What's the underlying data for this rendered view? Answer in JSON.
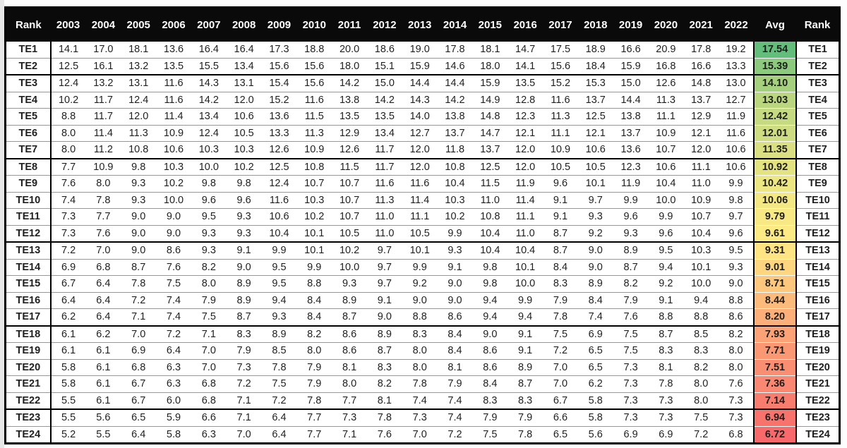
{
  "colors": {
    "header_bg": "#0A0A0A",
    "header_text": "#FFFFFF",
    "grid_line": "#979797",
    "tier_line": "#000000",
    "outer_border": "#000000",
    "scale_max_green": "#63BE7B",
    "scale_mid_yellow": "#FFEB84",
    "scale_min_red": "#F8696B"
  },
  "chart_data": {
    "type": "table",
    "columns": [
      "Rank",
      "2003",
      "2004",
      "2005",
      "2006",
      "2007",
      "2008",
      "2009",
      "2010",
      "2011",
      "2012",
      "2013",
      "2014",
      "2015",
      "2016",
      "2017",
      "2018",
      "2019",
      "2020",
      "2021",
      "2022",
      "Avg",
      "Rank"
    ],
    "rows": [
      {
        "rank": "TE1",
        "tier_break_above": false,
        "values": [
          "14.1",
          "17.0",
          "18.1",
          "13.6",
          "16.4",
          "16.4",
          "17.3",
          "18.8",
          "20.0",
          "18.6",
          "19.0",
          "17.8",
          "18.1",
          "14.7",
          "17.5",
          "18.9",
          "16.6",
          "20.9",
          "17.8",
          "19.2"
        ],
        "avg": "17.54",
        "avg_color": "#63BE7B"
      },
      {
        "rank": "TE2",
        "tier_break_above": false,
        "values": [
          "12.5",
          "16.1",
          "13.2",
          "13.5",
          "15.5",
          "13.4",
          "15.6",
          "15.6",
          "18.0",
          "15.1",
          "15.9",
          "14.6",
          "18.0",
          "14.1",
          "15.6",
          "18.4",
          "15.9",
          "16.8",
          "16.6",
          "13.3"
        ],
        "avg": "15.39",
        "avg_color": "#8CCA7D"
      },
      {
        "rank": "TE3",
        "tier_break_above": true,
        "values": [
          "12.4",
          "13.2",
          "13.1",
          "11.6",
          "14.3",
          "13.1",
          "15.4",
          "15.6",
          "14.2",
          "15.0",
          "14.4",
          "14.4",
          "15.9",
          "13.5",
          "15.2",
          "15.3",
          "15.0",
          "12.6",
          "14.8",
          "13.0"
        ],
        "avg": "14.10",
        "avg_color": "#A5D17F"
      },
      {
        "rank": "TE4",
        "tier_break_above": false,
        "values": [
          "10.2",
          "11.7",
          "12.4",
          "11.6",
          "14.2",
          "12.0",
          "15.2",
          "11.6",
          "13.8",
          "14.2",
          "14.3",
          "14.2",
          "14.9",
          "12.8",
          "11.6",
          "13.7",
          "14.4",
          "11.3",
          "13.7",
          "12.7"
        ],
        "avg": "13.03",
        "avg_color": "#BAD780"
      },
      {
        "rank": "TE5",
        "tier_break_above": false,
        "values": [
          "8.8",
          "11.7",
          "12.0",
          "11.4",
          "13.4",
          "10.6",
          "13.6",
          "11.5",
          "13.5",
          "13.5",
          "14.0",
          "13.8",
          "14.8",
          "12.3",
          "11.3",
          "12.5",
          "13.8",
          "11.1",
          "12.9",
          "11.9"
        ],
        "avg": "12.42",
        "avg_color": "#C6DB81"
      },
      {
        "rank": "TE6",
        "tier_break_above": false,
        "values": [
          "8.0",
          "11.4",
          "11.3",
          "10.9",
          "12.4",
          "10.5",
          "13.3",
          "11.3",
          "12.9",
          "13.4",
          "12.7",
          "13.7",
          "14.7",
          "12.1",
          "11.1",
          "12.1",
          "13.7",
          "10.9",
          "12.1",
          "11.6"
        ],
        "avg": "12.01",
        "avg_color": "#CEDD81"
      },
      {
        "rank": "TE7",
        "tier_break_above": false,
        "values": [
          "8.0",
          "11.2",
          "10.8",
          "10.6",
          "10.3",
          "10.3",
          "12.6",
          "10.9",
          "12.6",
          "11.7",
          "12.0",
          "11.8",
          "13.7",
          "12.0",
          "10.9",
          "10.6",
          "13.6",
          "10.7",
          "12.0",
          "10.6"
        ],
        "avg": "11.35",
        "avg_color": "#DAE082"
      },
      {
        "rank": "TE8",
        "tier_break_above": true,
        "values": [
          "7.7",
          "10.9",
          "9.8",
          "10.3",
          "10.0",
          "10.2",
          "12.5",
          "10.8",
          "11.5",
          "11.7",
          "12.0",
          "10.8",
          "12.5",
          "12.0",
          "10.5",
          "10.5",
          "12.3",
          "10.6",
          "11.1",
          "10.6"
        ],
        "avg": "10.92",
        "avg_color": "#E3E382"
      },
      {
        "rank": "TE9",
        "tier_break_above": false,
        "values": [
          "7.6",
          "8.0",
          "9.3",
          "10.2",
          "9.8",
          "9.8",
          "12.4",
          "10.7",
          "10.7",
          "11.6",
          "11.6",
          "10.4",
          "11.5",
          "11.9",
          "9.6",
          "10.1",
          "11.9",
          "10.4",
          "11.0",
          "9.9"
        ],
        "avg": "10.42",
        "avg_color": "#ECE683"
      },
      {
        "rank": "TE10",
        "tier_break_above": false,
        "values": [
          "7.4",
          "7.8",
          "9.3",
          "10.0",
          "9.6",
          "9.6",
          "11.6",
          "10.3",
          "10.7",
          "11.3",
          "11.4",
          "10.3",
          "11.0",
          "11.4",
          "9.1",
          "9.7",
          "9.9",
          "10.0",
          "10.9",
          "9.8"
        ],
        "avg": "10.06",
        "avg_color": "#F3E883"
      },
      {
        "rank": "TE11",
        "tier_break_above": false,
        "values": [
          "7.3",
          "7.7",
          "9.0",
          "9.0",
          "9.5",
          "9.3",
          "10.6",
          "10.2",
          "10.7",
          "11.0",
          "11.1",
          "10.2",
          "10.8",
          "11.1",
          "9.1",
          "9.3",
          "9.6",
          "9.9",
          "10.7",
          "9.7"
        ],
        "avg": "9.79",
        "avg_color": "#F9E984"
      },
      {
        "rank": "TE12",
        "tier_break_above": false,
        "values": [
          "7.3",
          "7.6",
          "9.0",
          "9.0",
          "9.3",
          "9.3",
          "10.4",
          "10.1",
          "10.5",
          "11.0",
          "10.5",
          "9.9",
          "10.4",
          "11.0",
          "8.7",
          "9.2",
          "9.3",
          "9.6",
          "10.4",
          "9.6"
        ],
        "avg": "9.61",
        "avg_color": "#FCEA84"
      },
      {
        "rank": "TE13",
        "tier_break_above": true,
        "values": [
          "7.2",
          "7.0",
          "9.0",
          "8.6",
          "9.3",
          "9.1",
          "9.9",
          "10.1",
          "10.2",
          "9.7",
          "10.1",
          "9.3",
          "10.4",
          "10.4",
          "8.7",
          "9.0",
          "8.9",
          "9.5",
          "10.3",
          "9.5"
        ],
        "avg": "9.31",
        "avg_color": "#FFE483"
      },
      {
        "rank": "TE14",
        "tier_break_above": false,
        "values": [
          "6.9",
          "6.8",
          "8.7",
          "7.6",
          "8.2",
          "9.0",
          "9.5",
          "9.9",
          "10.0",
          "9.7",
          "9.9",
          "9.1",
          "9.8",
          "10.1",
          "8.4",
          "9.0",
          "8.7",
          "9.4",
          "10.1",
          "9.3"
        ],
        "avg": "9.01",
        "avg_color": "#FED680"
      },
      {
        "rank": "TE15",
        "tier_break_above": false,
        "values": [
          "6.7",
          "6.4",
          "7.8",
          "7.5",
          "8.0",
          "8.9",
          "9.5",
          "8.8",
          "9.3",
          "9.7",
          "9.2",
          "9.0",
          "9.8",
          "10.0",
          "8.3",
          "8.9",
          "8.2",
          "9.2",
          "10.0",
          "9.0"
        ],
        "avg": "8.71",
        "avg_color": "#FDC77D"
      },
      {
        "rank": "TE16",
        "tier_break_above": false,
        "values": [
          "6.4",
          "6.4",
          "7.2",
          "7.4",
          "7.9",
          "8.9",
          "9.4",
          "8.4",
          "8.9",
          "9.1",
          "9.0",
          "9.0",
          "9.4",
          "9.9",
          "7.9",
          "8.4",
          "7.9",
          "9.1",
          "9.4",
          "8.8"
        ],
        "avg": "8.44",
        "avg_color": "#FCBB7B"
      },
      {
        "rank": "TE17",
        "tier_break_above": false,
        "values": [
          "6.2",
          "6.4",
          "7.1",
          "7.4",
          "7.5",
          "8.7",
          "9.3",
          "8.4",
          "8.7",
          "9.0",
          "8.8",
          "8.6",
          "9.4",
          "9.4",
          "7.8",
          "7.4",
          "7.6",
          "8.8",
          "8.8",
          "8.6"
        ],
        "avg": "8.20",
        "avg_color": "#FCAF79"
      },
      {
        "rank": "TE18",
        "tier_break_above": true,
        "values": [
          "6.1",
          "6.2",
          "7.0",
          "7.2",
          "7.1",
          "8.3",
          "8.9",
          "8.2",
          "8.6",
          "8.9",
          "8.3",
          "8.4",
          "9.0",
          "9.1",
          "7.5",
          "6.9",
          "7.5",
          "8.7",
          "8.5",
          "8.2"
        ],
        "avg": "7.93",
        "avg_color": "#FBA276"
      },
      {
        "rank": "TE19",
        "tier_break_above": false,
        "values": [
          "6.1",
          "6.1",
          "6.9",
          "6.4",
          "7.0",
          "7.9",
          "8.5",
          "8.0",
          "8.6",
          "8.7",
          "8.0",
          "8.4",
          "8.6",
          "9.1",
          "7.2",
          "6.5",
          "7.5",
          "8.3",
          "8.3",
          "8.0"
        ],
        "avg": "7.71",
        "avg_color": "#FA9874"
      },
      {
        "rank": "TE20",
        "tier_break_above": false,
        "values": [
          "5.8",
          "6.1",
          "6.8",
          "6.3",
          "7.0",
          "7.3",
          "7.8",
          "7.9",
          "8.1",
          "8.3",
          "8.0",
          "8.1",
          "8.6",
          "8.9",
          "7.0",
          "6.5",
          "7.3",
          "8.1",
          "8.2",
          "8.0"
        ],
        "avg": "7.51",
        "avg_color": "#FA8E72"
      },
      {
        "rank": "TE21",
        "tier_break_above": false,
        "values": [
          "5.8",
          "6.1",
          "6.7",
          "6.3",
          "6.8",
          "7.2",
          "7.5",
          "7.9",
          "8.0",
          "8.2",
          "7.8",
          "7.9",
          "8.4",
          "8.7",
          "7.0",
          "6.2",
          "7.3",
          "7.8",
          "8.0",
          "7.6"
        ],
        "avg": "7.36",
        "avg_color": "#FA8771"
      },
      {
        "rank": "TE22",
        "tier_break_above": false,
        "values": [
          "5.5",
          "6.1",
          "6.7",
          "6.0",
          "6.8",
          "7.1",
          "7.2",
          "7.8",
          "7.7",
          "8.1",
          "7.4",
          "7.4",
          "8.3",
          "8.3",
          "6.7",
          "5.8",
          "7.3",
          "7.3",
          "8.0",
          "7.3"
        ],
        "avg": "7.14",
        "avg_color": "#F97D6F"
      },
      {
        "rank": "TE23",
        "tier_break_above": true,
        "values": [
          "5.5",
          "5.6",
          "6.5",
          "5.9",
          "6.6",
          "7.1",
          "6.4",
          "7.7",
          "7.3",
          "7.8",
          "7.3",
          "7.4",
          "7.9",
          "7.9",
          "6.6",
          "5.8",
          "7.3",
          "7.3",
          "7.5",
          "7.3"
        ],
        "avg": "6.94",
        "avg_color": "#F9736D"
      },
      {
        "rank": "TE24",
        "tier_break_above": false,
        "values": [
          "5.2",
          "5.5",
          "6.4",
          "5.8",
          "6.3",
          "7.0",
          "6.4",
          "7.7",
          "7.1",
          "7.6",
          "7.0",
          "7.2",
          "7.5",
          "7.8",
          "6.5",
          "5.6",
          "6.9",
          "6.9",
          "7.2",
          "6.8"
        ],
        "avg": "6.72",
        "avg_color": "#F8696B"
      }
    ]
  }
}
